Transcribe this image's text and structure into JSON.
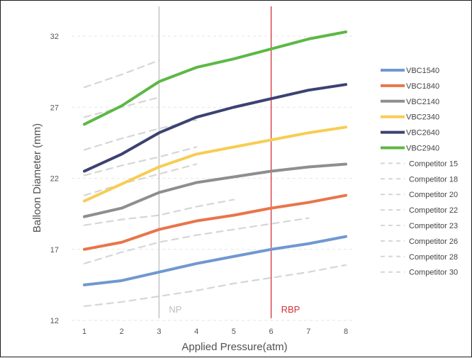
{
  "chart_data": {
    "type": "line",
    "title": "",
    "xlabel": "Applied Pressure(atm)",
    "ylabel": "Balloon Diameter (mm)",
    "x": [
      1,
      2,
      3,
      4,
      5,
      6,
      7,
      8
    ],
    "xlim": [
      1,
      8
    ],
    "ylim": [
      12,
      33
    ],
    "yticks": [
      12,
      17,
      22,
      27,
      32
    ],
    "grid": "horizontal dashed",
    "legend_position": "right",
    "reference_lines": [
      {
        "label": "NP",
        "x": 3,
        "color": "#bdbdbd"
      },
      {
        "label": "RBP",
        "x": 6,
        "color": "#d2313a"
      }
    ],
    "series": [
      {
        "name": "VBC1540",
        "color": "#7098d0",
        "style": "solid",
        "values": [
          14.5,
          14.8,
          15.4,
          16.0,
          16.5,
          17.0,
          17.4,
          17.9
        ]
      },
      {
        "name": "VBC1840",
        "color": "#e8754a",
        "style": "solid",
        "values": [
          17.0,
          17.5,
          18.4,
          19.0,
          19.4,
          19.9,
          20.3,
          20.8
        ]
      },
      {
        "name": "VBC2140",
        "color": "#8e8e8e",
        "style": "solid",
        "values": [
          19.3,
          19.9,
          21.0,
          21.7,
          22.1,
          22.5,
          22.8,
          23.0
        ]
      },
      {
        "name": "VBC2340",
        "color": "#f7cd52",
        "style": "solid",
        "values": [
          20.4,
          21.6,
          22.8,
          23.7,
          24.2,
          24.7,
          25.2,
          25.6
        ]
      },
      {
        "name": "VBC2640",
        "color": "#3b4272",
        "style": "solid",
        "values": [
          22.5,
          23.7,
          25.2,
          26.3,
          27.0,
          27.6,
          28.2,
          28.6
        ]
      },
      {
        "name": "VBC2940",
        "color": "#5cb845",
        "style": "solid",
        "values": [
          25.8,
          27.1,
          28.8,
          29.8,
          30.4,
          31.1,
          31.8,
          32.3
        ]
      },
      {
        "name": "Competitor 15",
        "color": "#d6d6d6",
        "style": "dashed",
        "x": [
          1,
          2,
          3,
          4,
          5,
          6,
          7,
          8
        ],
        "values": [
          13.0,
          13.3,
          13.7,
          14.1,
          14.6,
          15.0,
          15.4,
          15.9
        ]
      },
      {
        "name": "Competitor 18",
        "color": "#d6d6d6",
        "style": "dashed",
        "x": [
          1,
          2,
          3,
          4,
          5,
          6,
          7
        ],
        "values": [
          16.0,
          16.8,
          17.5,
          18.0,
          18.4,
          18.8,
          19.2
        ]
      },
      {
        "name": "Competitor 20",
        "color": "#d6d6d6",
        "style": "dashed",
        "x": [
          1,
          2,
          3,
          4,
          5
        ],
        "values": [
          18.7,
          19.1,
          19.4,
          20.0,
          20.5
        ]
      },
      {
        "name": "Competitor 22",
        "color": "#d6d6d6",
        "style": "dashed",
        "x": [
          1,
          2,
          3,
          4
        ],
        "values": [
          20.8,
          21.6,
          22.3,
          23.0
        ]
      },
      {
        "name": "Competitor 23",
        "color": "#d6d6d6",
        "style": "dashed",
        "x": [
          1,
          2,
          3,
          4
        ],
        "values": [
          22.2,
          22.9,
          23.5,
          24.2
        ]
      },
      {
        "name": "Competitor 26",
        "color": "#d6d6d6",
        "style": "dashed",
        "x": [
          1,
          2,
          3,
          4
        ],
        "values": [
          24.0,
          24.8,
          25.5,
          26.1
        ]
      },
      {
        "name": "Competitor 28",
        "color": "#d6d6d6",
        "style": "dashed",
        "x": [
          1,
          2,
          3
        ],
        "values": [
          26.3,
          27.0,
          27.7
        ]
      },
      {
        "name": "Competitor 30",
        "color": "#d6d6d6",
        "style": "dashed",
        "x": [
          1,
          2,
          3
        ],
        "values": [
          28.4,
          29.3,
          30.3
        ]
      }
    ]
  }
}
